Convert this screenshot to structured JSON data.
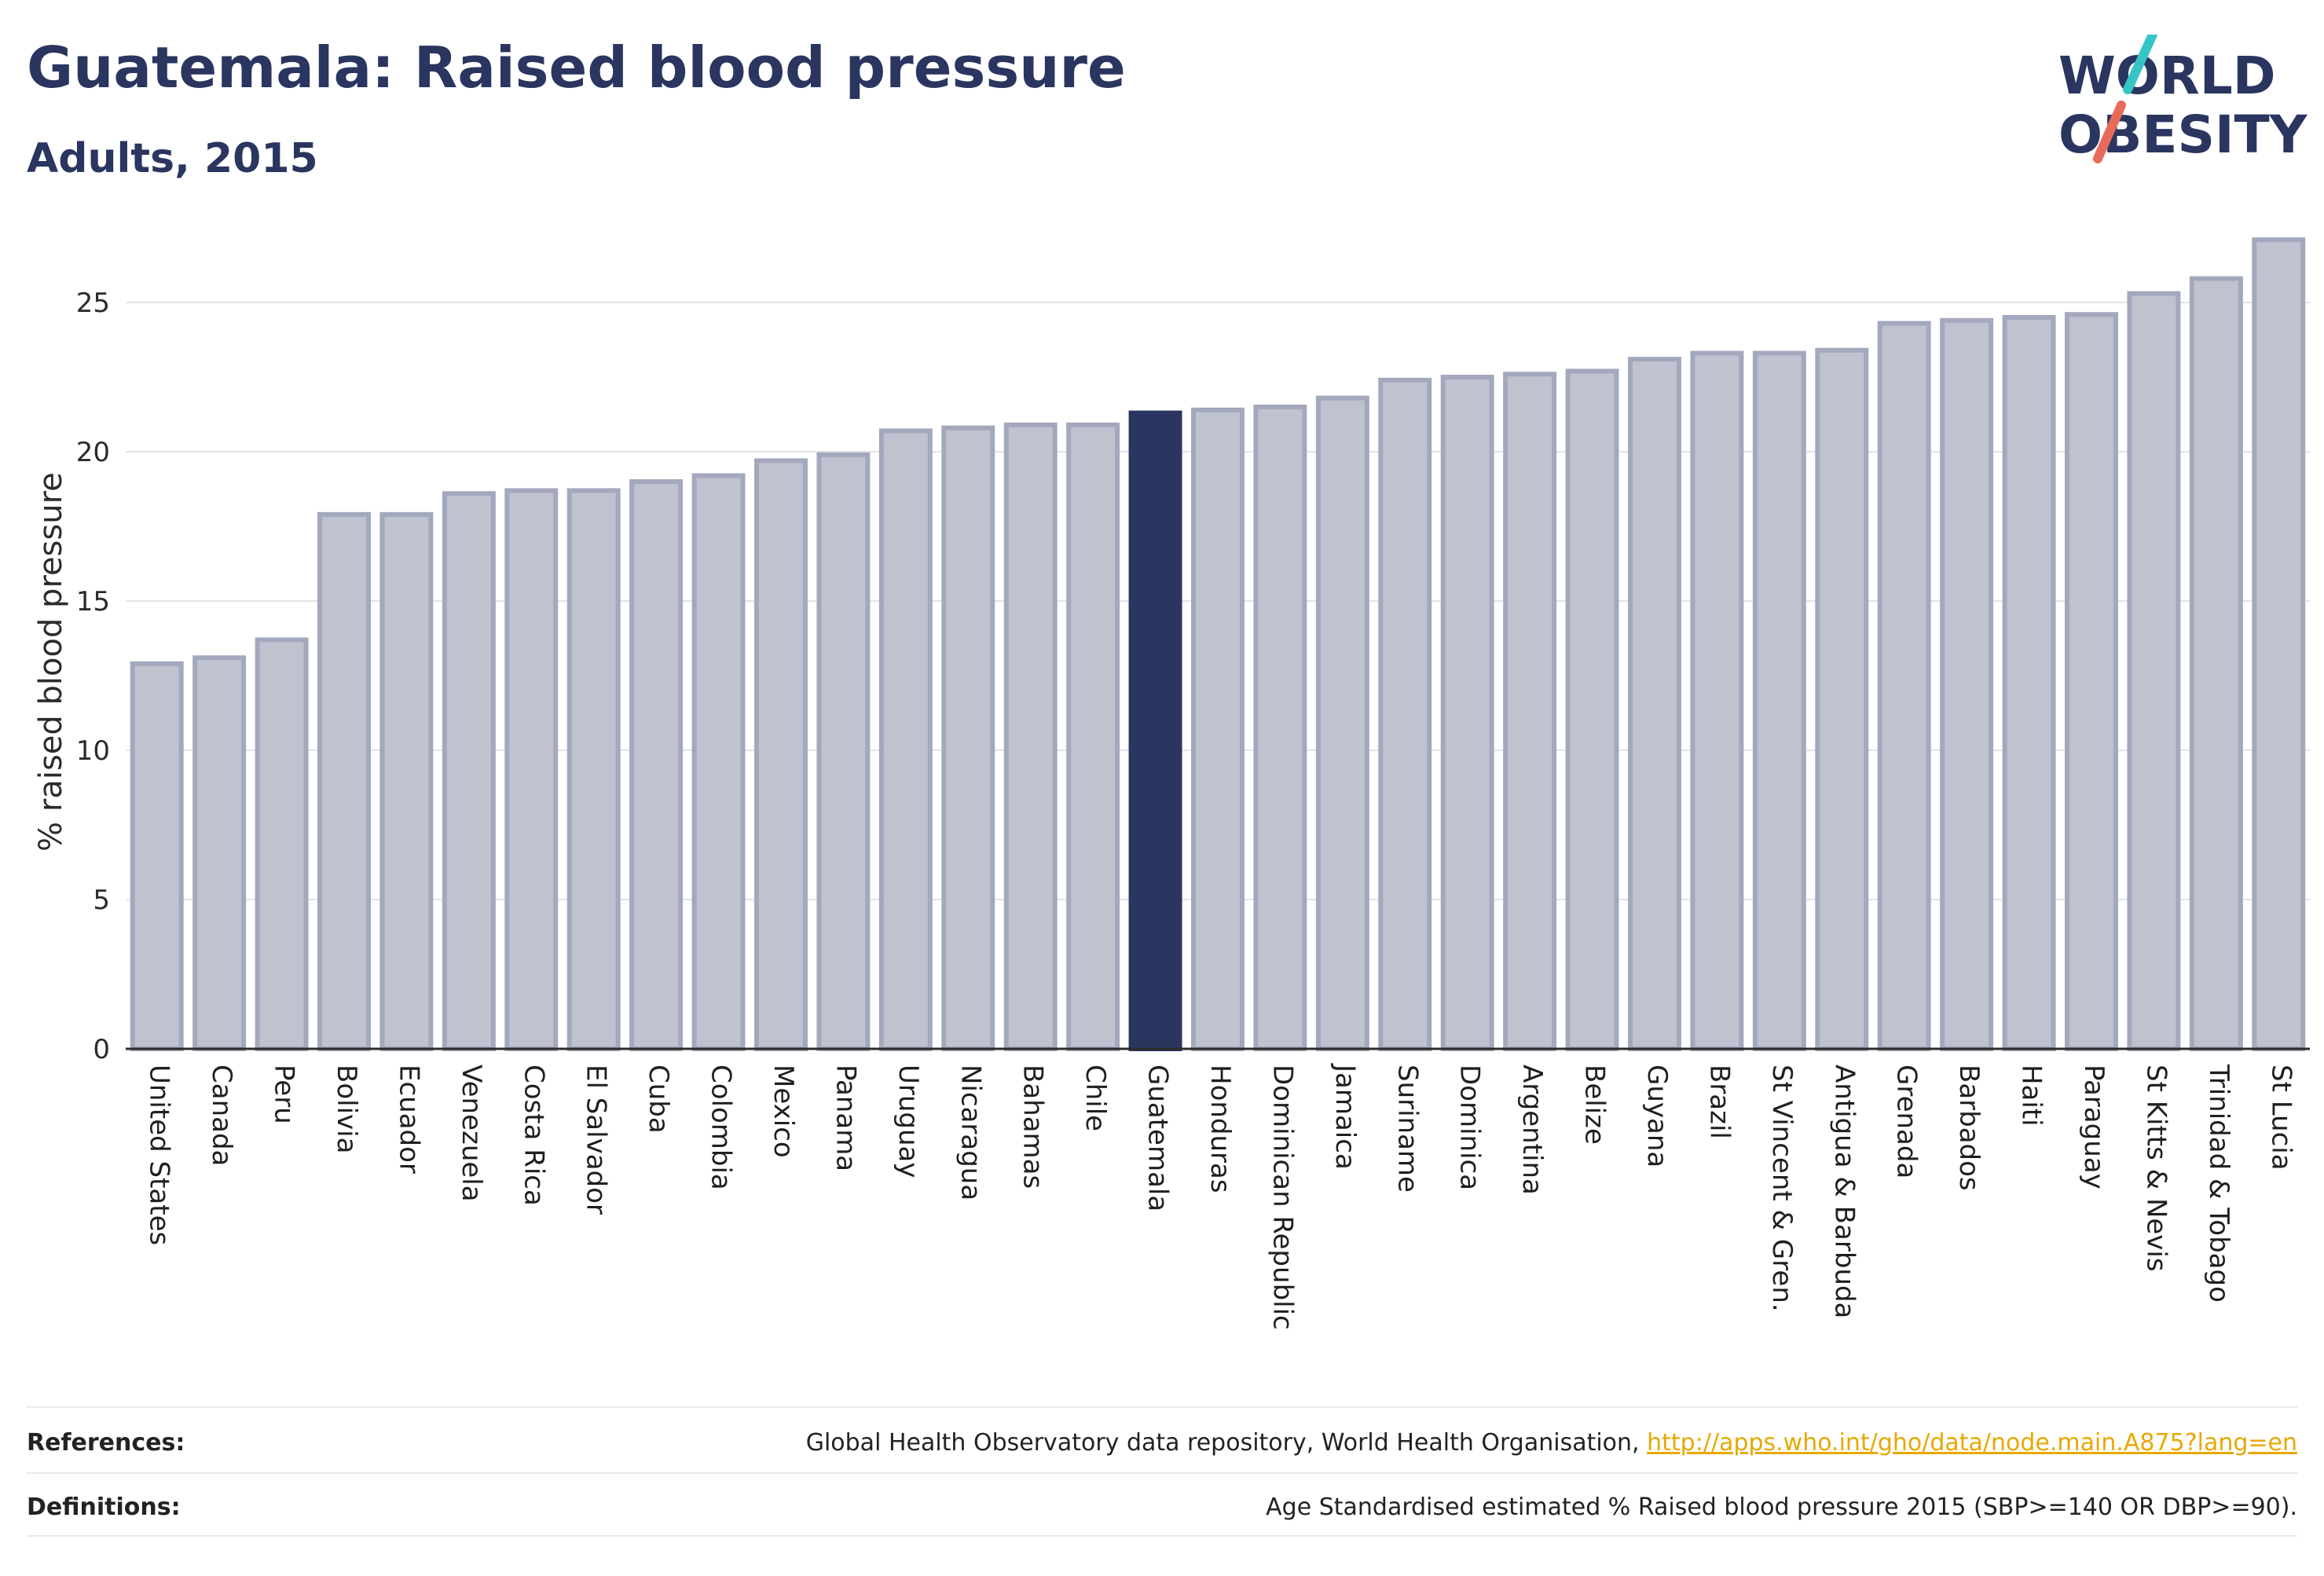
{
  "header": {
    "title": "Guatemala: Raised blood pressure",
    "subtitle": "Adults, 2015"
  },
  "logo": {
    "line1": "WORLD",
    "line2": "OBESITY"
  },
  "colors": {
    "highlight": "#2a3560",
    "bar_fill": "#bfc2cf",
    "bar_stroke": "#a3a8bd",
    "slash_teal": "#36c5c5",
    "slash_coral": "#e86a5a"
  },
  "chart_data": {
    "type": "bar",
    "title": "Guatemala: Raised blood pressure",
    "subtitle": "Adults, 2015",
    "xlabel": "",
    "ylabel": "% raised blood pressure",
    "ylim": [
      0,
      27.5
    ],
    "yticks": [
      0,
      5,
      10,
      15,
      20,
      25
    ],
    "grid": true,
    "highlight": "Guatemala",
    "categories": [
      "United States",
      "Canada",
      "Peru",
      "Bolivia",
      "Ecuador",
      "Venezuela",
      "Costa Rica",
      "El Salvador",
      "Cuba",
      "Colombia",
      "Mexico",
      "Panama",
      "Uruguay",
      "Nicaragua",
      "Bahamas",
      "Chile",
      "Guatemala",
      "Honduras",
      "Dominican Republic",
      "Jamaica",
      "Suriname",
      "Dominica",
      "Argentina",
      "Belize",
      "Guyana",
      "Brazil",
      "St Vincent & Gren.",
      "Antigua & Barbuda",
      "Grenada",
      "Barbados",
      "Haiti",
      "Paraguay",
      "St Kitts & Nevis",
      "Trinidad & Tobago",
      "St Lucia"
    ],
    "values": [
      12.9,
      13.1,
      13.7,
      17.9,
      17.9,
      18.6,
      18.7,
      18.7,
      19.0,
      19.2,
      19.7,
      19.9,
      20.7,
      20.8,
      20.9,
      20.9,
      21.3,
      21.4,
      21.5,
      21.8,
      22.4,
      22.5,
      22.6,
      22.7,
      23.1,
      23.3,
      23.3,
      23.4,
      24.3,
      24.4,
      24.5,
      24.6,
      25.3,
      25.8,
      27.1
    ]
  },
  "footer": {
    "references_label": "References:",
    "references_text": "Global Health Observatory data repository, World Health Organisation,",
    "references_link": "http://apps.who.int/gho/data/node.main.A875?lang=en",
    "definitions_label": "Definitions:",
    "definitions_text": "Age Standardised estimated % Raised blood pressure 2015 (SBP>=140 OR DBP>=90)."
  }
}
